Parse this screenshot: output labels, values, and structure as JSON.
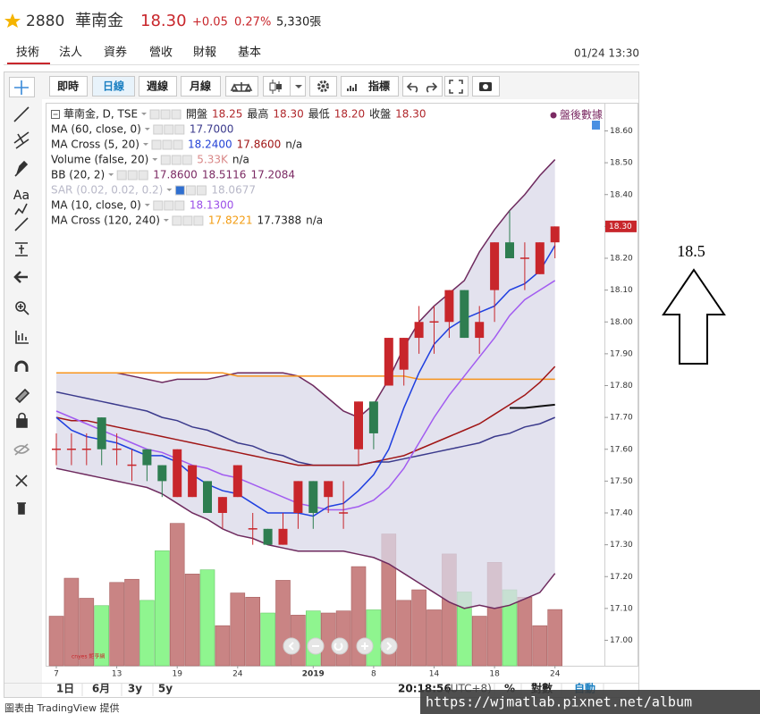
{
  "header": {
    "symbol": "2880",
    "name": "華南金",
    "price": "18.30",
    "change": "+0.05",
    "change_pct": "0.27%",
    "volume": "5,330張"
  },
  "tabs": [
    "技術",
    "法人",
    "資券",
    "營收",
    "財報",
    "基本"
  ],
  "timestamp": "01/24 13:30",
  "toolbar": [
    "即時",
    "日線",
    "週線",
    "月線",
    "指標"
  ],
  "sidebar_text": "Aa",
  "legend": [
    {
      "label": "華南金, D, TSE",
      "values": [
        "開盤",
        "18.25",
        "最高",
        "18.30",
        "最低",
        "18.20",
        "收盤",
        "18.30"
      ],
      "colors": [
        "#222",
        "#b0272b",
        "#222",
        "#b0272b",
        "#222",
        "#b0272b",
        "#222",
        "#b0272b"
      ]
    },
    {
      "label": "MA (60, close, 0)",
      "values": [
        "17.7000"
      ],
      "colors": [
        "#3b3a8c"
      ]
    },
    {
      "label": "MA Cross (5, 20)",
      "values": [
        "18.2400",
        "17.8600",
        "n/a"
      ],
      "colors": [
        "#2342d6",
        "#a01515",
        "#222"
      ]
    },
    {
      "label": "Volume (false, 20)",
      "values": [
        "5.33K",
        "n/a"
      ],
      "colors": [
        "#d98888",
        "#222"
      ]
    },
    {
      "label": "BB (20, 2)",
      "values": [
        "17.8600",
        "18.5116",
        "17.2084"
      ],
      "colors": [
        "#7b2a63",
        "#7b2a63",
        "#7b2a63"
      ]
    },
    {
      "label": "SAR (0.02, 0.02, 0.2)",
      "values": [
        "18.0677"
      ],
      "colors": [
        "#b8b8c8"
      ]
    },
    {
      "label": "MA (10, close, 0)",
      "values": [
        "18.1300"
      ],
      "colors": [
        "#9b4fe8"
      ]
    },
    {
      "label": "MA Cross (120, 240)",
      "values": [
        "17.8221",
        "17.7388",
        "n/a"
      ],
      "colors": [
        "#f39c12",
        "#222",
        "#222"
      ]
    }
  ],
  "after_hours": "盤後數據",
  "chart_data": {
    "type": "candlestick",
    "categories": [
      "7",
      null,
      null,
      null,
      "13",
      null,
      null,
      null,
      "19",
      null,
      null,
      null,
      "24",
      null,
      null,
      null,
      null,
      "2019",
      null,
      null,
      null,
      "8",
      null,
      null,
      null,
      "14",
      null,
      null,
      null,
      "18",
      null,
      null,
      null,
      "24"
    ],
    "open": [
      17.6,
      17.6,
      17.6,
      17.7,
      17.6,
      17.55,
      17.6,
      17.55,
      17.45,
      17.45,
      17.5,
      17.4,
      17.45,
      17.35,
      17.35,
      17.3,
      17.4,
      17.5,
      17.45,
      17.4,
      17.6,
      17.75,
      17.8,
      17.85,
      17.95,
      18.0,
      18.0,
      18.1,
      17.95,
      18.1,
      18.25,
      18.2,
      18.15,
      18.25
    ],
    "high": [
      17.65,
      17.65,
      17.65,
      17.7,
      17.65,
      17.6,
      17.6,
      17.55,
      17.6,
      17.55,
      17.5,
      17.45,
      17.55,
      17.4,
      17.35,
      17.4,
      17.5,
      17.5,
      17.5,
      17.5,
      17.75,
      17.75,
      17.95,
      17.95,
      18.05,
      18.05,
      18.1,
      18.1,
      18.05,
      18.25,
      18.35,
      18.25,
      18.25,
      18.3
    ],
    "low": [
      17.55,
      17.55,
      17.55,
      17.55,
      17.55,
      17.5,
      17.5,
      17.45,
      17.45,
      17.45,
      17.4,
      17.35,
      17.45,
      17.3,
      17.3,
      17.3,
      17.35,
      17.35,
      17.4,
      17.35,
      17.55,
      17.6,
      17.8,
      17.8,
      17.9,
      17.9,
      17.95,
      17.95,
      17.9,
      18.0,
      18.2,
      18.1,
      18.15,
      18.2
    ],
    "close": [
      17.6,
      17.6,
      17.6,
      17.6,
      17.6,
      17.55,
      17.55,
      17.5,
      17.6,
      17.55,
      17.4,
      17.45,
      17.55,
      17.35,
      17.3,
      17.35,
      17.5,
      17.4,
      17.5,
      17.4,
      17.75,
      17.65,
      17.95,
      17.95,
      18.0,
      18.0,
      18.1,
      17.95,
      18.0,
      18.25,
      18.2,
      18.2,
      18.25,
      18.3
    ],
    "up_color": "#c8262b",
    "down_color": "#2e7d50",
    "volume": [
      4.7,
      8.3,
      6.4,
      5.7,
      7.9,
      8.2,
      6.2,
      10.9,
      13.5,
      8.7,
      9.1,
      3.8,
      6.9,
      6.5,
      5.0,
      8.1,
      4.8,
      5.2,
      5.0,
      5.2,
      9.4,
      5.3,
      12.5,
      6.2,
      7.2,
      5.3,
      10.6,
      7.0,
      4.7,
      9.8,
      7.2,
      6.5,
      3.8,
      5.33
    ],
    "volume_up_color": "#c98484",
    "volume_down_color": "#8ff58f",
    "band_fill": "#d9d8e8",
    "series": [
      {
        "name": "BB upper",
        "color": "#6e2a5e",
        "values": [
          17.84,
          17.84,
          17.84,
          17.84,
          17.84,
          17.83,
          17.82,
          17.81,
          17.82,
          17.82,
          17.82,
          17.83,
          17.84,
          17.84,
          17.84,
          17.84,
          17.83,
          17.8,
          17.76,
          17.72,
          17.7,
          17.74,
          17.82,
          17.92,
          18.0,
          18.05,
          18.09,
          18.13,
          18.22,
          18.29,
          18.35,
          18.4,
          18.46,
          18.51
        ]
      },
      {
        "name": "BB lower",
        "color": "#6e2a5e",
        "values": [
          17.54,
          17.53,
          17.52,
          17.51,
          17.5,
          17.49,
          17.48,
          17.46,
          17.43,
          17.4,
          17.38,
          17.35,
          17.33,
          17.32,
          17.3,
          17.29,
          17.28,
          17.28,
          17.28,
          17.28,
          17.27,
          17.26,
          17.24,
          17.21,
          17.18,
          17.15,
          17.12,
          17.1,
          17.11,
          17.1,
          17.11,
          17.13,
          17.15,
          17.21
        ]
      },
      {
        "name": "MA 120",
        "color": "#f7941d",
        "values": [
          17.84,
          17.84,
          17.84,
          17.84,
          17.84,
          17.84,
          17.84,
          17.84,
          17.84,
          17.84,
          17.84,
          17.84,
          17.83,
          17.83,
          17.83,
          17.83,
          17.83,
          17.83,
          17.83,
          17.83,
          17.83,
          17.83,
          17.83,
          17.83,
          17.82,
          17.82,
          17.82,
          17.82,
          17.82,
          17.82,
          17.82,
          17.82,
          17.82,
          17.82
        ]
      },
      {
        "name": "MA 60",
        "color": "#3b3a8c",
        "values": [
          17.78,
          17.77,
          17.76,
          17.75,
          17.74,
          17.73,
          17.72,
          17.7,
          17.69,
          17.67,
          17.66,
          17.64,
          17.62,
          17.61,
          17.59,
          17.58,
          17.56,
          17.55,
          17.55,
          17.55,
          17.55,
          17.56,
          17.56,
          17.57,
          17.58,
          17.59,
          17.6,
          17.61,
          17.62,
          17.64,
          17.65,
          17.67,
          17.68,
          17.7
        ]
      },
      {
        "name": "MA 20",
        "color": "#a01515",
        "values": [
          17.7,
          17.69,
          17.69,
          17.68,
          17.67,
          17.66,
          17.65,
          17.64,
          17.63,
          17.62,
          17.61,
          17.6,
          17.59,
          17.58,
          17.57,
          17.56,
          17.55,
          17.55,
          17.55,
          17.55,
          17.55,
          17.56,
          17.57,
          17.58,
          17.6,
          17.62,
          17.64,
          17.66,
          17.68,
          17.71,
          17.74,
          17.77,
          17.81,
          17.86
        ]
      },
      {
        "name": "MA 10",
        "color": "#a25cf0",
        "values": [
          17.72,
          17.7,
          17.68,
          17.66,
          17.64,
          17.62,
          17.6,
          17.59,
          17.57,
          17.55,
          17.54,
          17.52,
          17.51,
          17.49,
          17.47,
          17.45,
          17.43,
          17.42,
          17.41,
          17.41,
          17.42,
          17.44,
          17.48,
          17.54,
          17.62,
          17.7,
          17.77,
          17.83,
          17.89,
          17.95,
          18.02,
          18.07,
          18.1,
          18.13
        ]
      },
      {
        "name": "MA 5",
        "color": "#1f3fe0",
        "values": [
          17.7,
          17.66,
          17.64,
          17.63,
          17.62,
          17.6,
          17.58,
          17.58,
          17.56,
          17.52,
          17.49,
          17.47,
          17.46,
          17.43,
          17.4,
          17.4,
          17.4,
          17.39,
          17.42,
          17.43,
          17.47,
          17.52,
          17.6,
          17.73,
          17.84,
          17.93,
          17.98,
          18.01,
          18.03,
          18.05,
          18.1,
          18.12,
          18.16,
          18.24
        ]
      },
      {
        "name": "MA 240",
        "color": "#111111",
        "values": [
          null,
          null,
          null,
          null,
          null,
          null,
          null,
          null,
          null,
          null,
          null,
          null,
          null,
          null,
          null,
          null,
          null,
          null,
          null,
          null,
          null,
          null,
          null,
          null,
          null,
          null,
          null,
          null,
          null,
          null,
          17.73,
          17.73,
          17.735,
          17.74
        ]
      }
    ],
    "ylim": [
      16.92,
      18.68
    ],
    "yticks": [
      {
        "value": 18.6,
        "label": "18.60"
      },
      {
        "value": 18.5,
        "label": "18.50"
      },
      {
        "value": 18.4,
        "label": "18.40"
      },
      {
        "value": 18.3,
        "label": "18.30"
      },
      {
        "value": 18.2,
        "label": "18.20"
      },
      {
        "value": 18.1,
        "label": "18.10"
      },
      {
        "value": 18.0,
        "label": "18.00"
      },
      {
        "value": 17.9,
        "label": "17.90"
      },
      {
        "value": 17.8,
        "label": "17.80"
      },
      {
        "value": 17.7,
        "label": "17.70"
      },
      {
        "value": 17.6,
        "label": "17.60"
      },
      {
        "value": 17.5,
        "label": "17.50"
      },
      {
        "value": 17.4,
        "label": "17.40"
      },
      {
        "value": 17.3,
        "label": "17.30"
      },
      {
        "value": 17.2,
        "label": "17.20"
      },
      {
        "value": 17.1,
        "label": "17.10"
      },
      {
        "value": 17.0,
        "label": "17.00"
      }
    ],
    "price_tag": "18.30",
    "grid": false
  },
  "bottom_bar": {
    "ranges": [
      "1日",
      "6月",
      "3y",
      "5y"
    ],
    "clock": "20:18:56",
    "tz": "(UTC+8)",
    "percent": "%",
    "log": "對數",
    "auto": "自動"
  },
  "logo": "cnyes 鉅亨網",
  "footer": "圖表由 TradingView 提供",
  "watermark": "https://wjmatlab.pixnet.net/album",
  "annotation": "18.5"
}
